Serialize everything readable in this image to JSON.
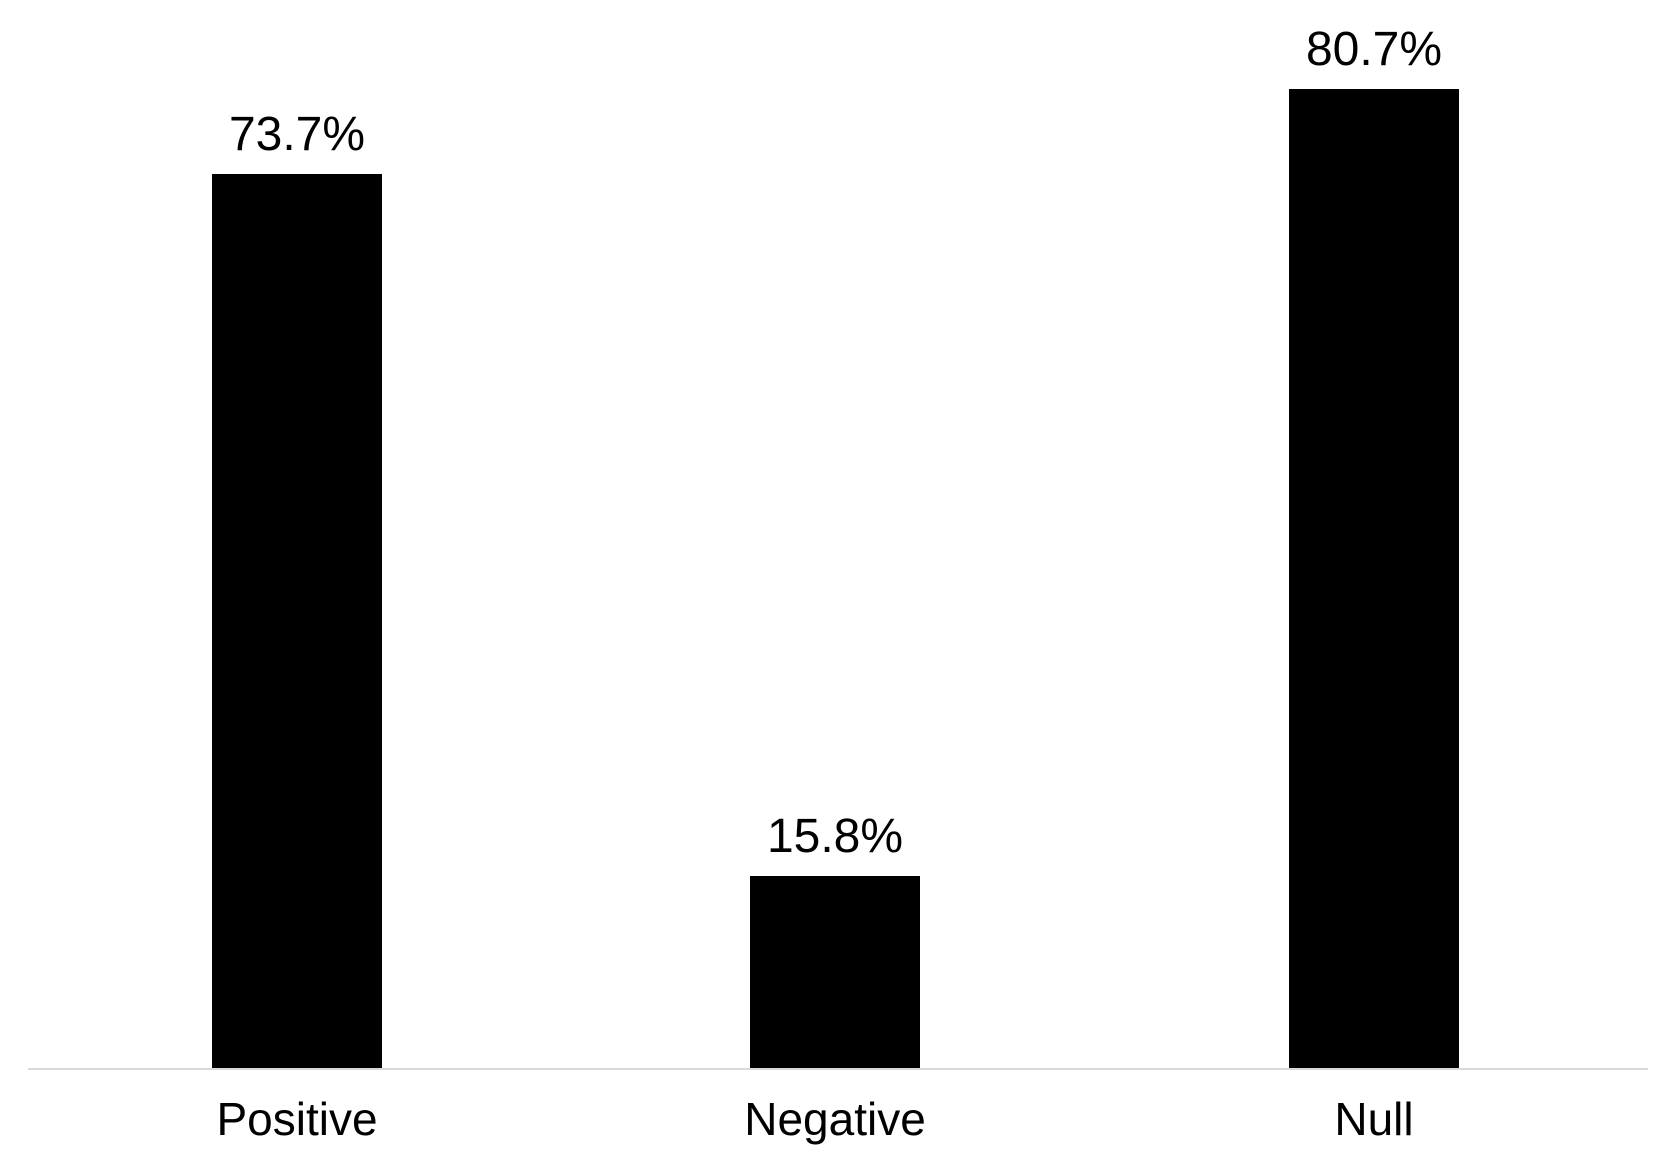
{
  "chart_data": {
    "type": "bar",
    "categories": [
      "Positive",
      "Negative",
      "Null"
    ],
    "values": [
      73.7,
      15.8,
      80.7
    ],
    "value_labels": [
      "73.7%",
      "15.8%",
      "80.7%"
    ],
    "ylim": [
      0,
      88
    ],
    "bar_color": "#000000",
    "axis_line_color": "#d9d9d9",
    "background_color": "#ffffff",
    "grid": false,
    "legend": false,
    "data_labels_position": "above-bars",
    "x_tick_labels_position": "below-axis"
  }
}
